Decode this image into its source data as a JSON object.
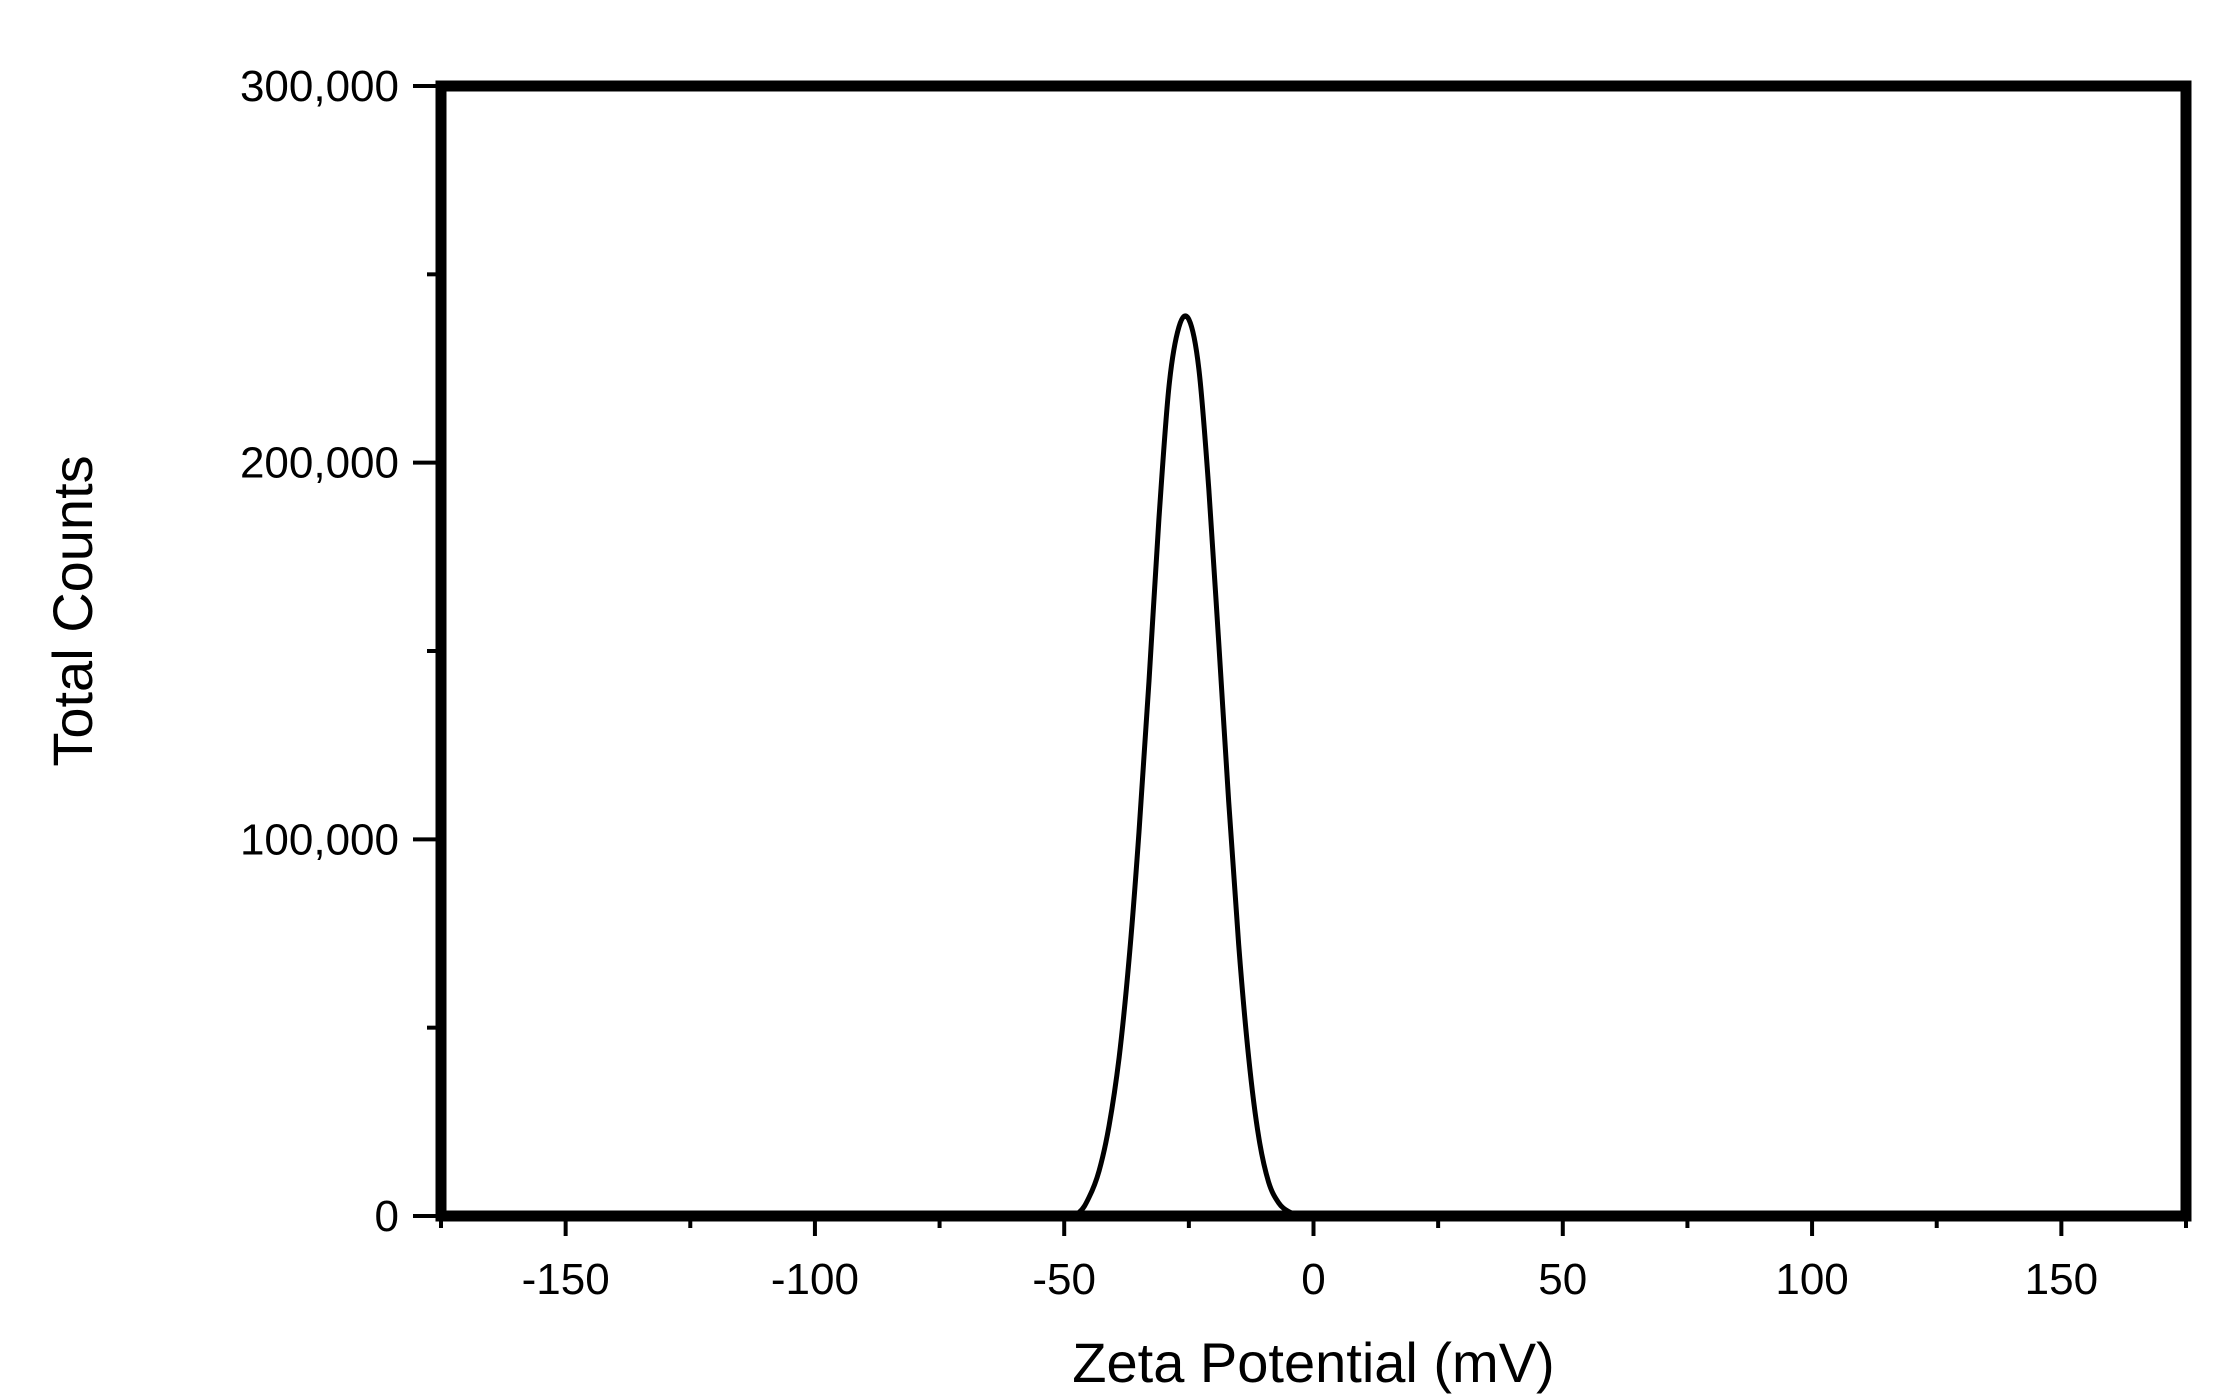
{
  "chart_data": {
    "type": "line",
    "title": "",
    "xlabel": "Zeta Potential (mV)",
    "ylabel": "Total Counts",
    "xlim": [
      -175,
      175
    ],
    "ylim": [
      0,
      300000
    ],
    "x_ticks": [
      -150,
      -100,
      -50,
      0,
      50,
      100,
      150
    ],
    "x_tick_labels": [
      "-150",
      "-100",
      "-50",
      "0",
      "50",
      "100",
      "150"
    ],
    "y_ticks": [
      0,
      100000,
      200000,
      300000
    ],
    "y_tick_labels": [
      "0",
      "100,000",
      "200,000",
      "300,000"
    ],
    "grid": false,
    "legend": "none",
    "series": [
      {
        "color": "#000000",
        "x": [
          -175,
          -60,
          -50,
          -47,
          -45,
          -43,
          -41,
          -39,
          -37,
          -35,
          -33,
          -31,
          -29,
          -27,
          -25,
          -23,
          -21,
          -19,
          -17,
          -15,
          -13,
          -11,
          -9,
          -7,
          -5,
          -3,
          -1,
          0,
          10,
          175
        ],
        "y": [
          0,
          0,
          0,
          1000,
          5000,
          12000,
          24000,
          42000,
          68000,
          102000,
          142000,
          185000,
          220000,
          236000,
          238000,
          225000,
          193000,
          152000,
          110000,
          72000,
          42000,
          21000,
          9000,
          3500,
          1200,
          300,
          50,
          0,
          0,
          0
        ]
      }
    ]
  }
}
